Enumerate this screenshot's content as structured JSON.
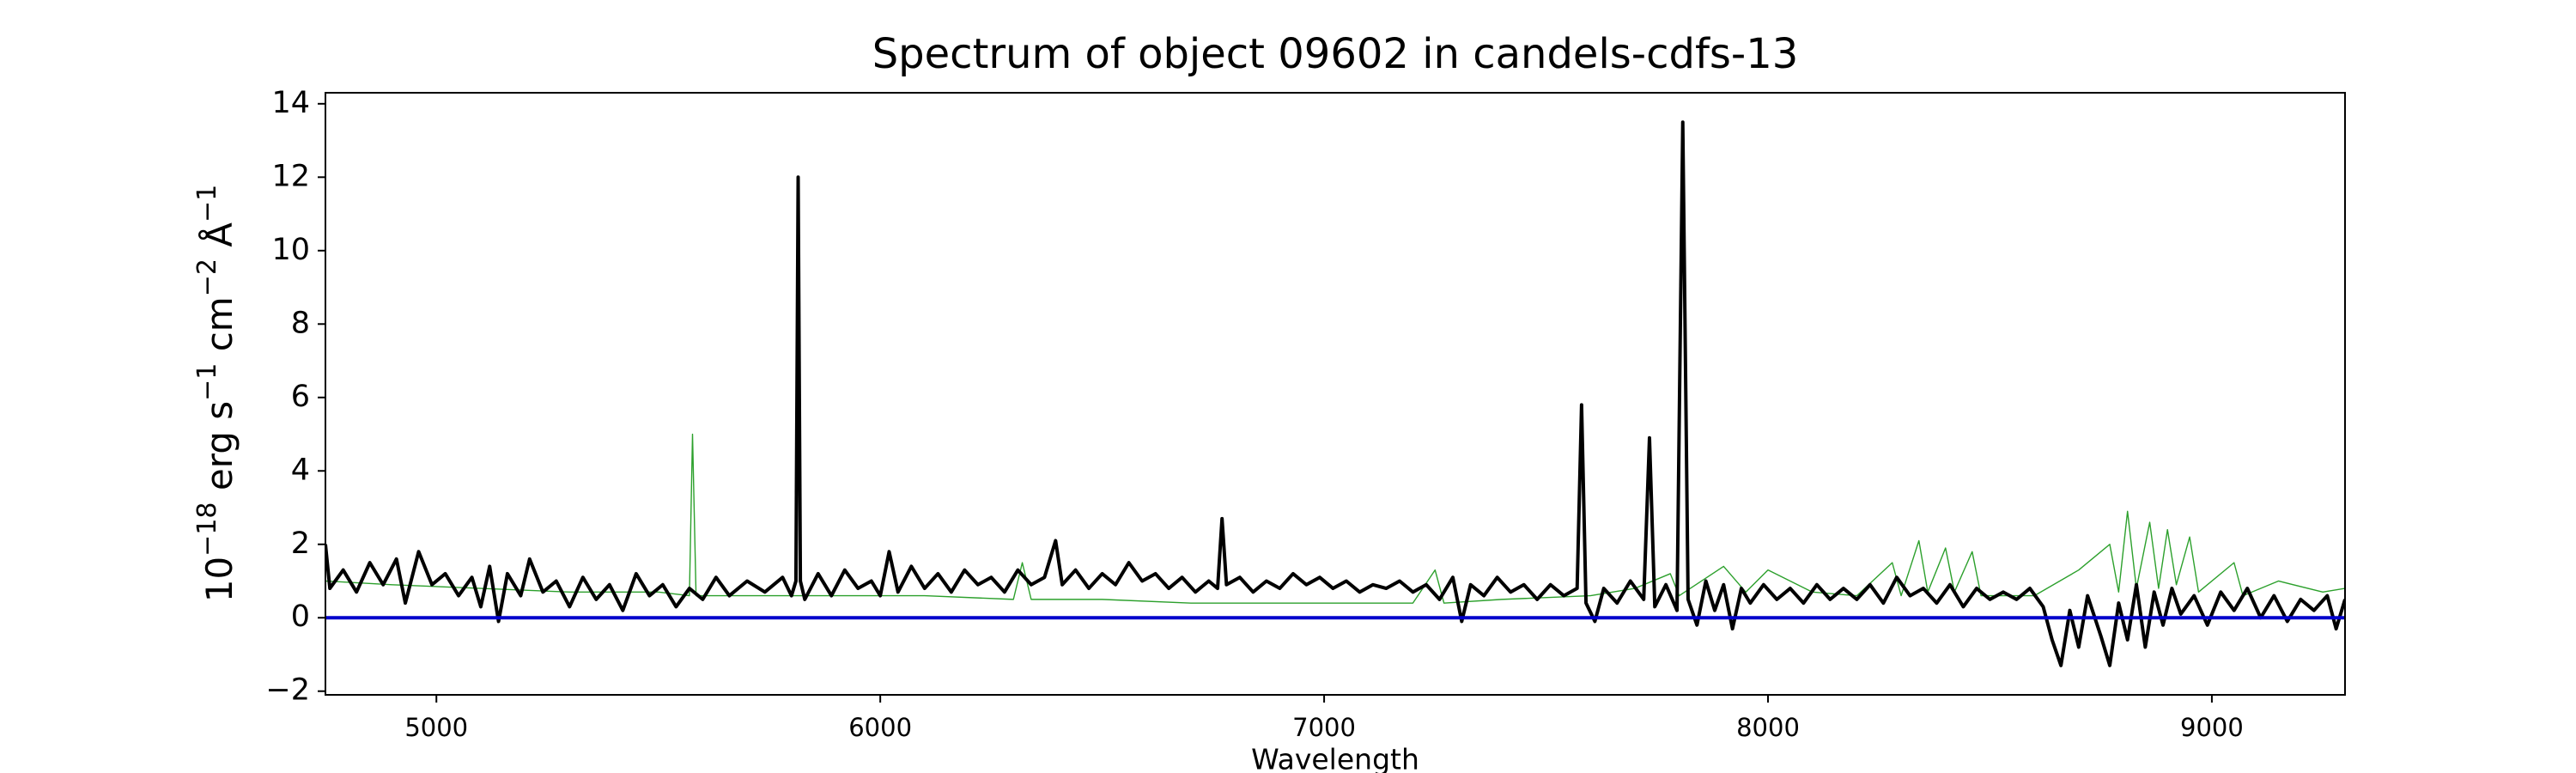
{
  "chart_data": {
    "type": "line",
    "title": "Spectrum of object 09602 in candels-cdfs-13",
    "xlabel": "Wavelength",
    "ylabel": [
      "10",
      "−18",
      " erg s",
      "−1",
      " cm",
      "−2",
      " Å",
      "−1"
    ],
    "xlim": [
      4750,
      9300
    ],
    "ylim": [
      -2.1,
      14.3
    ],
    "xticks": [
      5000,
      6000,
      7000,
      8000,
      9000
    ],
    "yticks": [
      {
        "value": -2,
        "label": "−2"
      },
      0,
      2,
      4,
      6,
      8,
      10,
      12,
      14
    ],
    "series": [
      {
        "color": "#2ca02c",
        "width": 1.4,
        "x": [
          4750,
          4900,
          5100,
          5300,
          5500,
          5570,
          5577,
          5585,
          5700,
          5900,
          6100,
          6300,
          6320,
          6340,
          6500,
          6700,
          6900,
          7000,
          7200,
          7250,
          7270,
          7400,
          7600,
          7700,
          7780,
          7800,
          7900,
          7950,
          8000,
          8100,
          8200,
          8280,
          8300,
          8340,
          8360,
          8400,
          8420,
          8460,
          8480,
          8600,
          8700,
          8770,
          8790,
          8810,
          8830,
          8860,
          8880,
          8900,
          8920,
          8950,
          8970,
          9050,
          9070,
          9150,
          9250,
          9300
        ],
        "values": [
          1.0,
          0.9,
          0.8,
          0.7,
          0.7,
          0.6,
          5.0,
          0.6,
          0.6,
          0.6,
          0.6,
          0.5,
          1.5,
          0.5,
          0.5,
          0.4,
          0.4,
          0.4,
          0.4,
          1.3,
          0.4,
          0.5,
          0.6,
          0.8,
          1.2,
          0.6,
          1.4,
          0.7,
          1.3,
          0.7,
          0.6,
          1.5,
          0.6,
          2.1,
          0.7,
          1.9,
          0.7,
          1.8,
          0.6,
          0.6,
          1.3,
          2.0,
          0.7,
          2.9,
          0.8,
          2.6,
          0.8,
          2.4,
          0.9,
          2.2,
          0.7,
          1.5,
          0.6,
          1.0,
          0.7,
          0.8
        ]
      },
      {
        "color": "#000000",
        "width": 4,
        "x": [
          4750,
          4760,
          4790,
          4820,
          4850,
          4880,
          4910,
          4930,
          4960,
          4990,
          5020,
          5050,
          5080,
          5100,
          5120,
          5140,
          5160,
          5190,
          5210,
          5240,
          5270,
          5300,
          5330,
          5360,
          5390,
          5420,
          5450,
          5480,
          5510,
          5540,
          5570,
          5600,
          5630,
          5660,
          5700,
          5740,
          5780,
          5800,
          5810,
          5815,
          5820,
          5830,
          5860,
          5890,
          5920,
          5950,
          5980,
          6000,
          6020,
          6040,
          6070,
          6100,
          6130,
          6160,
          6190,
          6220,
          6250,
          6280,
          6310,
          6340,
          6370,
          6395,
          6410,
          6440,
          6470,
          6500,
          6530,
          6560,
          6590,
          6620,
          6650,
          6680,
          6710,
          6740,
          6760,
          6770,
          6780,
          6810,
          6840,
          6870,
          6900,
          6930,
          6960,
          6990,
          7020,
          7050,
          7080,
          7110,
          7140,
          7170,
          7200,
          7230,
          7260,
          7290,
          7310,
          7330,
          7360,
          7390,
          7420,
          7450,
          7480,
          7510,
          7540,
          7570,
          7580,
          7590,
          7610,
          7630,
          7660,
          7690,
          7720,
          7733,
          7745,
          7770,
          7795,
          7808,
          7820,
          7840,
          7860,
          7880,
          7900,
          7920,
          7940,
          7960,
          7990,
          8020,
          8050,
          8080,
          8110,
          8140,
          8170,
          8200,
          8230,
          8260,
          8290,
          8320,
          8350,
          8380,
          8410,
          8440,
          8470,
          8500,
          8530,
          8560,
          8590,
          8620,
          8640,
          8660,
          8680,
          8700,
          8720,
          8750,
          8770,
          8790,
          8810,
          8830,
          8850,
          8870,
          8890,
          8910,
          8930,
          8960,
          8990,
          9020,
          9050,
          9080,
          9110,
          9140,
          9170,
          9200,
          9230,
          9260,
          9280,
          9300
        ],
        "values": [
          2.0,
          0.8,
          1.3,
          0.7,
          1.5,
          0.9,
          1.6,
          0.4,
          1.8,
          0.9,
          1.2,
          0.6,
          1.1,
          0.3,
          1.4,
          -0.1,
          1.2,
          0.6,
          1.6,
          0.7,
          1.0,
          0.3,
          1.1,
          0.5,
          0.9,
          0.2,
          1.2,
          0.6,
          0.9,
          0.3,
          0.8,
          0.5,
          1.1,
          0.6,
          1.0,
          0.7,
          1.1,
          0.6,
          1.0,
          12.0,
          1.0,
          0.5,
          1.2,
          0.6,
          1.3,
          0.8,
          1.0,
          0.6,
          1.8,
          0.7,
          1.4,
          0.8,
          1.2,
          0.7,
          1.3,
          0.9,
          1.1,
          0.7,
          1.3,
          0.9,
          1.1,
          2.1,
          0.9,
          1.3,
          0.8,
          1.2,
          0.9,
          1.5,
          1.0,
          1.2,
          0.8,
          1.1,
          0.7,
          1.0,
          0.8,
          2.7,
          0.9,
          1.1,
          0.7,
          1.0,
          0.8,
          1.2,
          0.9,
          1.1,
          0.8,
          1.0,
          0.7,
          0.9,
          0.8,
          1.0,
          0.7,
          0.9,
          0.5,
          1.1,
          -0.1,
          0.9,
          0.6,
          1.1,
          0.7,
          0.9,
          0.5,
          0.9,
          0.6,
          0.8,
          5.8,
          0.4,
          -0.1,
          0.8,
          0.4,
          1.0,
          0.5,
          4.9,
          0.3,
          0.9,
          0.2,
          13.5,
          0.5,
          -0.2,
          1.0,
          0.2,
          0.9,
          -0.3,
          0.8,
          0.4,
          0.9,
          0.5,
          0.8,
          0.4,
          0.9,
          0.5,
          0.8,
          0.5,
          0.9,
          0.4,
          1.1,
          0.6,
          0.8,
          0.4,
          0.9,
          0.3,
          0.8,
          0.5,
          0.7,
          0.5,
          0.8,
          0.3,
          -0.6,
          -1.3,
          0.2,
          -0.8,
          0.6,
          -0.5,
          -1.3,
          0.4,
          -0.6,
          0.9,
          -0.8,
          0.7,
          -0.2,
          0.8,
          0.1,
          0.6,
          -0.2,
          0.7,
          0.2,
          0.8,
          0.0,
          0.6,
          -0.1,
          0.5,
          0.2,
          0.6,
          -0.3,
          0.5
        ]
      },
      {
        "color": "#0000cc",
        "width": 4,
        "x": [
          4750,
          9300
        ],
        "values": [
          0,
          0
        ]
      }
    ]
  }
}
